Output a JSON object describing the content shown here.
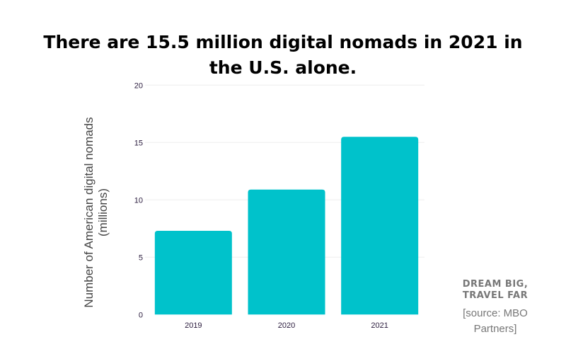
{
  "chart_data": {
    "type": "bar",
    "title": "There are 15.5 million digital nomads in 2021 in the U.S. alone.",
    "xlabel": "",
    "ylabel": "Number of American digital nomads (millions)",
    "categories": [
      "2019",
      "2020",
      "2021"
    ],
    "values": [
      7.3,
      10.9,
      15.5
    ],
    "ylim": [
      0,
      20
    ],
    "yticks": [
      "0",
      "5",
      "10",
      "15",
      "20"
    ],
    "grid": true,
    "bar_color": "#00C2CB"
  },
  "branding": {
    "line1": "DREAM BIG,",
    "line2": "TRAVEL FAR"
  },
  "source": "[source: MBO Partners]"
}
